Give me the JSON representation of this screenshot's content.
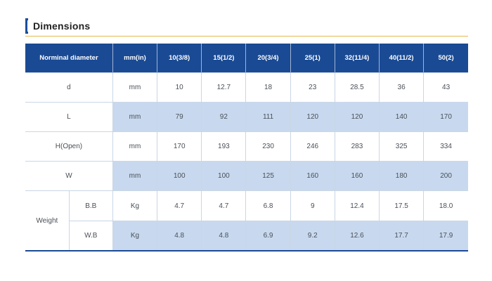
{
  "title": "Dimensions",
  "header": {
    "name": "Norminal diameter",
    "unit": "mm(in)",
    "sizes": [
      "10(3/8)",
      "15(1/2)",
      "20(3/4)",
      "25(1)",
      "32(11/4)",
      "40(11/2)",
      "50(2)"
    ]
  },
  "rows": [
    {
      "label": "d",
      "unit": "mm",
      "values": [
        "10",
        "12.7",
        "18",
        "23",
        "28.5",
        "36",
        "43"
      ]
    },
    {
      "label": "L",
      "unit": "mm",
      "values": [
        "79",
        "92",
        "111",
        "120",
        "120",
        "140",
        "170"
      ]
    },
    {
      "label": "H(Open)",
      "unit": "mm",
      "values": [
        "170",
        "193",
        "230",
        "246",
        "283",
        "325",
        "334"
      ]
    },
    {
      "label": "W",
      "unit": "mm",
      "values": [
        "100",
        "100",
        "125",
        "160",
        "160",
        "180",
        "200"
      ]
    }
  ],
  "weight": {
    "label": "Weight",
    "rows": [
      {
        "label": "B.B",
        "unit": "Kg",
        "values": [
          "4.7",
          "4.7",
          "6.8",
          "9",
          "12.4",
          "17.5",
          "18.0"
        ]
      },
      {
        "label": "W.B",
        "unit": "Kg",
        "values": [
          "4.8",
          "4.8",
          "6.9",
          "9.2",
          "12.6",
          "17.7",
          "17.9"
        ]
      }
    ]
  },
  "colors": {
    "header_bg": "#1a4a93",
    "highlight_bg": "#c8d9ef",
    "accent_rule": "#e5b94e"
  }
}
